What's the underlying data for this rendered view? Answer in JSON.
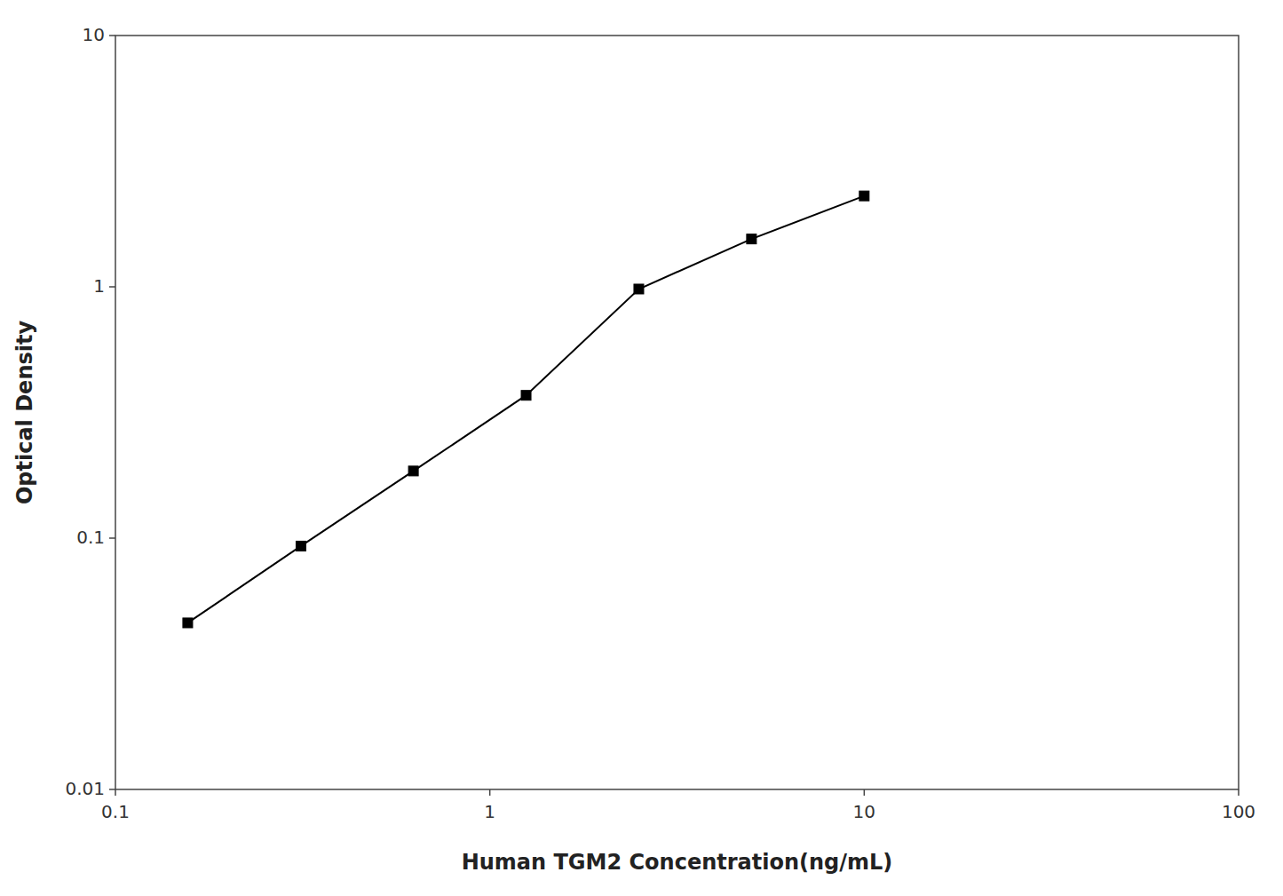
{
  "chart_data": {
    "type": "line",
    "xlabel": "Human TGM2 Concentration(ng/mL)",
    "ylabel": "Optical Density",
    "x": [
      0.156,
      0.313,
      0.625,
      1.25,
      2.5,
      5.0,
      10.0
    ],
    "values": [
      0.046,
      0.093,
      0.185,
      0.37,
      0.98,
      1.55,
      2.3
    ],
    "xlim": [
      0.1,
      100
    ],
    "ylim": [
      0.01,
      10
    ],
    "xticks": [
      0.1,
      1,
      10,
      100
    ],
    "yticks": [
      0.01,
      0.1,
      1,
      10
    ],
    "log": true,
    "grid": false,
    "color": "#000000",
    "marker": "square"
  }
}
